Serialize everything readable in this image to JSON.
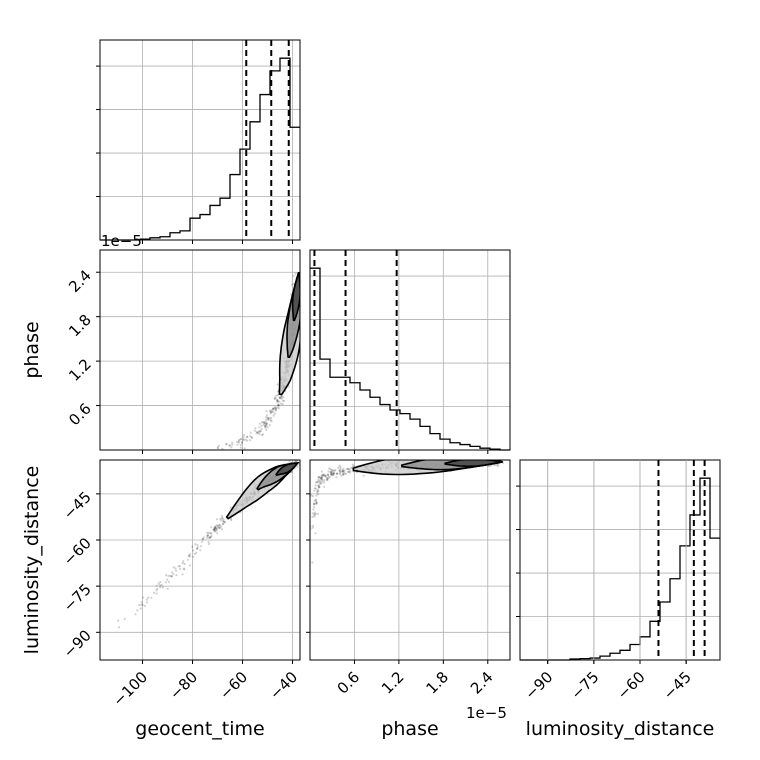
{
  "figure": {
    "offset_text_top": "1e−5",
    "offset_text_bottom": "1e−5"
  },
  "chart_data": {
    "type": "corner",
    "parameters": [
      "geocent_time",
      "phase",
      "luminosity_distance"
    ],
    "axis_labels": {
      "geocent_time": "geocent_time",
      "phase": "phase",
      "luminosity_distance": "luminosity_distance"
    },
    "ranges": {
      "geocent_time": [
        -117,
        -37
      ],
      "phase": [
        0.0,
        2.7
      ],
      "luminosity_distance": [
        -99,
        -34
      ]
    },
    "ticks": {
      "geocent_time": [
        "−100",
        "−80",
        "−60",
        "−40"
      ],
      "phase": [
        "0.6",
        "1.2",
        "1.8",
        "2.4"
      ],
      "luminosity_distance": [
        "−90",
        "−75",
        "−60",
        "−45"
      ]
    },
    "tick_values": {
      "geocent_time": [
        -100,
        -80,
        -60,
        -40
      ],
      "phase": [
        0.6,
        1.2,
        1.8,
        2.4
      ],
      "luminosity_distance": [
        -90,
        -75,
        -60,
        -45
      ]
    },
    "quantiles": {
      "geocent_time": [
        -58.5,
        -48.5,
        -41.5
      ],
      "phase": [
        0.06,
        0.48,
        1.17
      ],
      "luminosity_distance": [
        -54,
        -42.5,
        -39
      ]
    },
    "histograms": {
      "geocent_time": {
        "edges": [
          -117,
          -113,
          -109,
          -105,
          -101,
          -97,
          -93,
          -89,
          -85,
          -81,
          -77,
          -73,
          -69,
          -65,
          -61,
          -57,
          -53,
          -49,
          -45,
          -41,
          -37
        ],
        "counts": [
          0,
          0,
          0,
          0,
          0.005,
          0.012,
          0.018,
          0.04,
          0.05,
          0.12,
          0.14,
          0.19,
          0.23,
          0.36,
          0.5,
          0.65,
          0.8,
          0.93,
          1.0,
          0.62
        ]
      },
      "phase": {
        "edges": [
          0,
          0.135,
          0.27,
          0.405,
          0.54,
          0.675,
          0.81,
          0.945,
          1.08,
          1.215,
          1.35,
          1.485,
          1.62,
          1.755,
          1.89,
          2.025,
          2.16,
          2.295,
          2.43,
          2.565,
          2.7
        ],
        "counts": [
          1.0,
          0.5,
          0.4,
          0.4,
          0.37,
          0.33,
          0.29,
          0.25,
          0.22,
          0.2,
          0.17,
          0.13,
          0.09,
          0.06,
          0.04,
          0.03,
          0.02,
          0.01,
          0.005,
          0.0
        ]
      },
      "luminosity_distance": {
        "edges": [
          -99,
          -95.75,
          -92.5,
          -89.25,
          -86,
          -82.75,
          -79.5,
          -76.25,
          -73,
          -69.75,
          -66.5,
          -63.25,
          -60,
          -56.75,
          -53.5,
          -50.25,
          -47,
          -43.75,
          -40.5,
          -37.25,
          -34
        ],
        "counts": [
          0,
          0,
          0,
          0,
          0,
          0.005,
          0.007,
          0.01,
          0.02,
          0.035,
          0.05,
          0.08,
          0.12,
          0.2,
          0.3,
          0.42,
          0.59,
          0.75,
          0.94,
          0.63
        ]
      }
    },
    "scatter_panels": [
      {
        "x": "geocent_time",
        "y": "phase",
        "trend": [
          [
            -70,
            0.03
          ],
          [
            -62,
            0.08
          ],
          [
            -55,
            0.2
          ],
          [
            -50,
            0.38
          ],
          [
            -46,
            0.62
          ],
          [
            -43,
            0.95
          ],
          [
            -41,
            1.35
          ],
          [
            -39,
            1.85
          ],
          [
            -37.5,
            2.4
          ]
        ]
      },
      {
        "x": "geocent_time",
        "y": "luminosity_distance",
        "trend": [
          [
            -111,
            -89
          ],
          [
            -100,
            -81
          ],
          [
            -90,
            -73
          ],
          [
            -80,
            -64
          ],
          [
            -70,
            -56
          ],
          [
            -60,
            -48
          ],
          [
            -52,
            -42
          ],
          [
            -45,
            -38
          ],
          [
            -38,
            -35
          ]
        ]
      },
      {
        "x": "phase",
        "y": "luminosity_distance",
        "trend": [
          [
            0.03,
            -70
          ],
          [
            0.05,
            -55
          ],
          [
            0.08,
            -45
          ],
          [
            0.15,
            -40
          ],
          [
            0.3,
            -38
          ],
          [
            0.6,
            -37
          ],
          [
            1.0,
            -36.3
          ],
          [
            1.5,
            -35.5
          ],
          [
            2.0,
            -35
          ],
          [
            2.6,
            -34.6
          ]
        ]
      }
    ]
  }
}
